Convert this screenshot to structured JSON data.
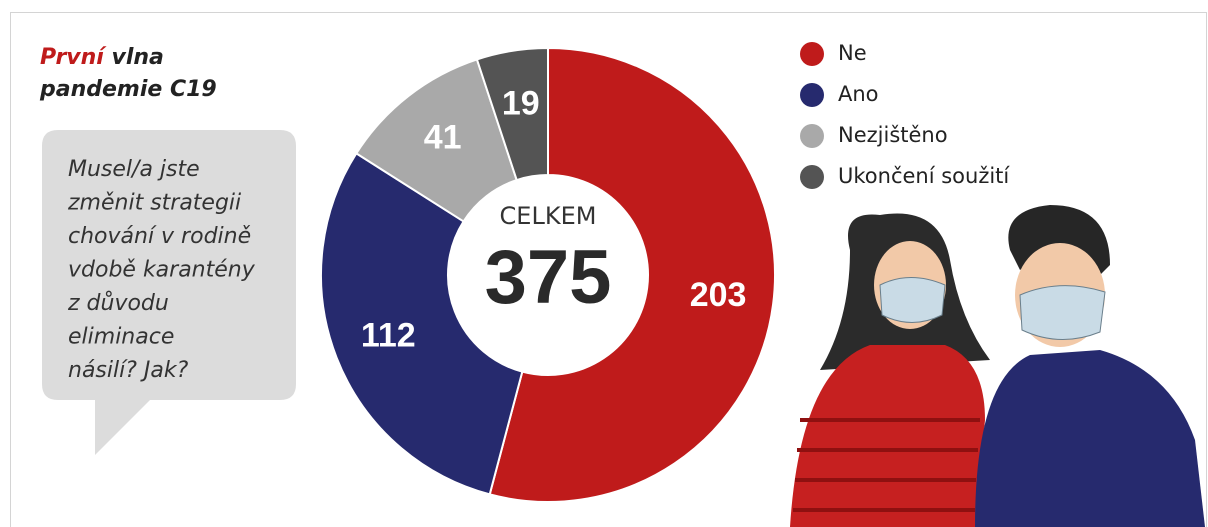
{
  "title": {
    "highlight": "První",
    "rest": "vlna",
    "line2": "pandemie C19"
  },
  "question_lines": [
    "Musel/a jste",
    "změnit strategii",
    "chování v rodině",
    "vdobě karantény",
    "z důvodu",
    "eliminace",
    "násilí? Jak?"
  ],
  "chart_data": {
    "type": "pie",
    "donut": true,
    "center_label": "CELKEM",
    "total": 375,
    "categories": [
      "Ne",
      "Ano",
      "Nezjištěno",
      "Ukončení soužití"
    ],
    "values": [
      203,
      112,
      41,
      19
    ],
    "colors": [
      "#bf1b1b",
      "#262a6e",
      "#a9a9a9",
      "#545454"
    ]
  }
}
